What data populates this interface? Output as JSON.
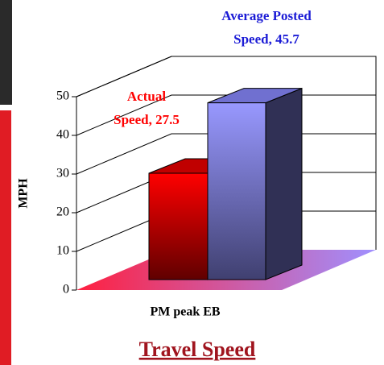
{
  "chart_data": {
    "type": "bar3d",
    "title": "Travel Speed",
    "ylabel": "MPH",
    "categories": [
      "PM peak EB"
    ],
    "series": [
      {
        "color": "#ff0000",
        "values": [
          27.5
        ],
        "value_labels": [
          "Actual Speed, 27.5"
        ],
        "label_color": "#ff0000"
      },
      {
        "color": "#8f8fff",
        "values": [
          45.7
        ],
        "value_labels": [
          "Average Posted Speed, 45.7"
        ],
        "label_color": "#1c1cd6"
      }
    ],
    "ylim": [
      0,
      50
    ],
    "yticks": [
      0,
      10,
      20,
      30,
      40,
      50
    ],
    "grid": true
  }
}
